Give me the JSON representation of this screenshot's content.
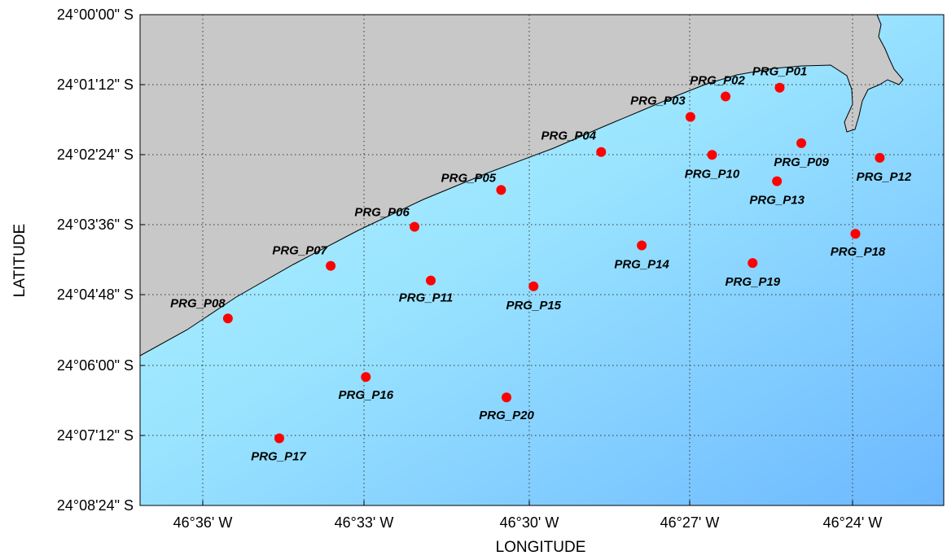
{
  "map": {
    "xlabel": "LONGITUDE",
    "ylabel": "LATITUDE",
    "colors": {
      "land": "#c8c8c8",
      "sea_shallow": "#b2f4ff",
      "sea_deep": "#6cb8ff",
      "station": "#ff0000",
      "coastline": "#000000"
    },
    "x_ticks": [
      "46°36' W",
      "46°33' W",
      "46°30' W",
      "46°27' W",
      "46°24' W"
    ],
    "y_ticks": [
      "24°00'00\" S",
      "24°01'12\" S",
      "24°02'24\" S",
      "24°03'36\" S",
      "24°04'48\" S",
      "24°06'00\" S",
      "24°07'12\" S",
      "24°08'24\" S"
    ],
    "stations": [
      {
        "name": "PRG_P01",
        "lon_min": 25.35,
        "lat_min": 1.25
      },
      {
        "name": "PRG_P02",
        "lon_min": 26.35,
        "lat_min": 1.4
      },
      {
        "name": "PRG_P03",
        "lon_min": 27.0,
        "lat_min": 1.75
      },
      {
        "name": "PRG_P04",
        "lon_min": 28.65,
        "lat_min": 2.35
      },
      {
        "name": "PRG_P05",
        "lon_min": 30.5,
        "lat_min": 3.0
      },
      {
        "name": "PRG_P06",
        "lon_min": 32.1,
        "lat_min": 3.63
      },
      {
        "name": "PRG_P07",
        "lon_min": 33.65,
        "lat_min": 4.3
      },
      {
        "name": "PRG_P08",
        "lon_min": 35.55,
        "lat_min": 5.2
      },
      {
        "name": "PRG_P09",
        "lon_min": 24.95,
        "lat_min": 2.2
      },
      {
        "name": "PRG_P10",
        "lon_min": 26.6,
        "lat_min": 2.4
      },
      {
        "name": "PRG_P11",
        "lon_min": 31.8,
        "lat_min": 4.55
      },
      {
        "name": "PRG_P12",
        "lon_min": 23.5,
        "lat_min": 2.45
      },
      {
        "name": "PRG_P13",
        "lon_min": 25.4,
        "lat_min": 2.85
      },
      {
        "name": "PRG_P14",
        "lon_min": 27.9,
        "lat_min": 3.95
      },
      {
        "name": "PRG_P15",
        "lon_min": 29.9,
        "lat_min": 4.65
      },
      {
        "name": "PRG_P16",
        "lon_min": 33.0,
        "lat_min": 6.2
      },
      {
        "name": "PRG_P17",
        "lon_min": 34.6,
        "lat_min": 7.25
      },
      {
        "name": "PRG_P18",
        "lon_min": 23.95,
        "lat_min": 3.75
      },
      {
        "name": "PRG_P19",
        "lon_min": 25.85,
        "lat_min": 4.25
      },
      {
        "name": "PRG_P20",
        "lon_min": 30.4,
        "lat_min": 6.55
      }
    ]
  }
}
